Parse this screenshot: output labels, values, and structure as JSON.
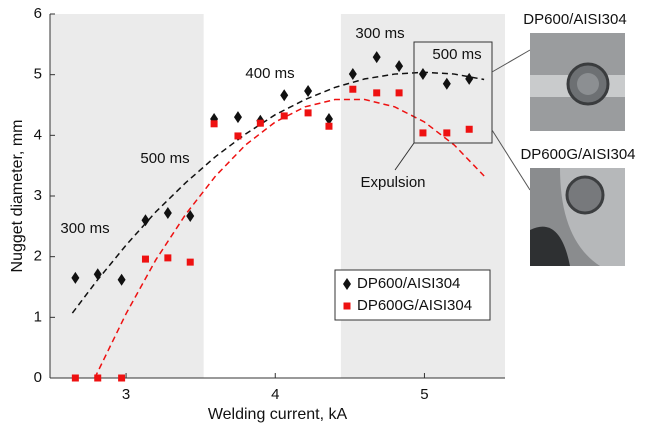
{
  "chart_data": {
    "type": "scatter",
    "xlabel": "Welding current, kA",
    "ylabel": "Nugget diameter, mm",
    "xlim": [
      2.49,
      5.54
    ],
    "ylim": [
      0,
      6
    ],
    "xticks": [
      3,
      4,
      5
    ],
    "yticks": [
      0,
      1,
      2,
      3,
      4,
      5,
      6
    ],
    "shaded_bands": [
      [
        2.49,
        3.52
      ],
      [
        4.44,
        5.54
      ]
    ],
    "band_color": "#ebebeb",
    "legend": "lower right",
    "series": [
      {
        "name": "DP600/AISI304",
        "color": "#111111",
        "marker": "diamond",
        "x": [
          2.66,
          2.81,
          2.97,
          3.13,
          3.28,
          3.43,
          3.59,
          3.75,
          3.9,
          4.06,
          4.22,
          4.36,
          4.52,
          4.68,
          4.83,
          4.99,
          5.15,
          5.3
        ],
        "values": [
          1.65,
          1.71,
          1.62,
          2.6,
          2.72,
          2.67,
          4.27,
          4.3,
          4.24,
          4.66,
          4.73,
          4.27,
          5.01,
          5.29,
          5.14,
          5.01,
          4.85,
          4.93
        ]
      },
      {
        "name": "DP600G/AISI304",
        "color": "#ee1111",
        "marker": "square",
        "x": [
          2.66,
          2.81,
          2.97,
          3.13,
          3.28,
          3.43,
          3.59,
          3.75,
          3.9,
          4.06,
          4.22,
          4.36,
          4.52,
          4.68,
          4.83,
          4.99,
          5.15,
          5.3
        ],
        "values": [
          0,
          0,
          0,
          1.96,
          1.98,
          1.91,
          4.19,
          3.99,
          4.2,
          4.32,
          4.37,
          4.15,
          4.76,
          4.7,
          4.7,
          4.04,
          4.04,
          4.1
        ]
      }
    ],
    "fits": [
      {
        "color": "#111111",
        "x": [
          2.64,
          2.8,
          3.0,
          3.2,
          3.4,
          3.6,
          3.8,
          4.0,
          4.2,
          4.4,
          4.6,
          4.8,
          5.0,
          5.2,
          5.4
        ],
        "values": [
          1.07,
          1.59,
          2.19,
          2.74,
          3.22,
          3.65,
          4.02,
          4.34,
          4.59,
          4.79,
          4.93,
          5.01,
          5.04,
          5.01,
          4.92
        ]
      },
      {
        "color": "#ee1111",
        "x": [
          2.79,
          3.0,
          3.2,
          3.4,
          3.6,
          3.8,
          4.0,
          4.2,
          4.4,
          4.6,
          4.8,
          5.0,
          5.2,
          5.4
        ],
        "values": [
          0,
          1.06,
          1.95,
          2.7,
          3.33,
          3.84,
          4.22,
          4.47,
          4.59,
          4.59,
          4.47,
          4.22,
          3.84,
          3.33
        ]
      }
    ],
    "annotations": [
      "300 ms",
      "500 ms",
      "400 ms",
      "300 ms",
      "500 ms",
      "Expulsion"
    ],
    "inset_labels": [
      "DP600/AISI304",
      "DP600G/AISI304"
    ]
  }
}
